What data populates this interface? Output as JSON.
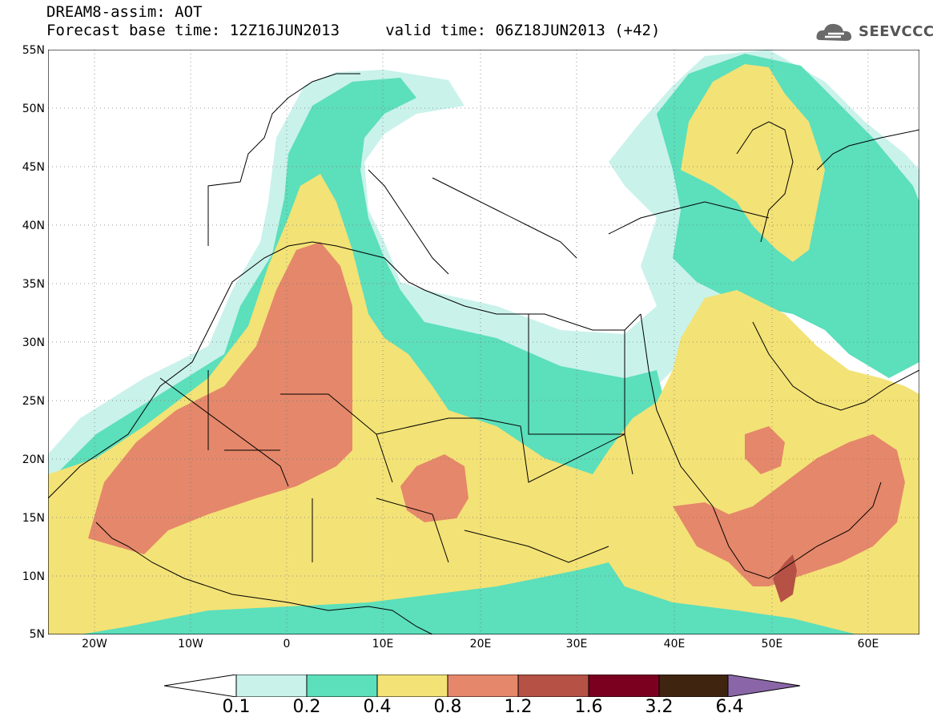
{
  "header": {
    "title_line1": "DREAM8-assim: AOT",
    "title_line2": "Forecast base time: 12Z16JUN2013     valid time: 06Z18JUN2013 (+42)",
    "logo_text": "SEEVCCC"
  },
  "map": {
    "lat_labels": [
      "55N",
      "50N",
      "45N",
      "40N",
      "35N",
      "30N",
      "25N",
      "20N",
      "15N",
      "10N",
      "5N"
    ],
    "lon_labels": [
      "20W",
      "10W",
      "0",
      "10E",
      "20E",
      "30E",
      "40E",
      "50E",
      "60E"
    ]
  },
  "colorbar": {
    "levels": [
      "0.1",
      "0.2",
      "0.4",
      "0.8",
      "1.2",
      "1.6",
      "3.2",
      "6.4"
    ],
    "colors": [
      "#c9f2eb",
      "#5cdfbb",
      "#f3e276",
      "#e5876a",
      "#b55145",
      "#7b0020",
      "#3f2510",
      "#8a66a8"
    ]
  }
}
